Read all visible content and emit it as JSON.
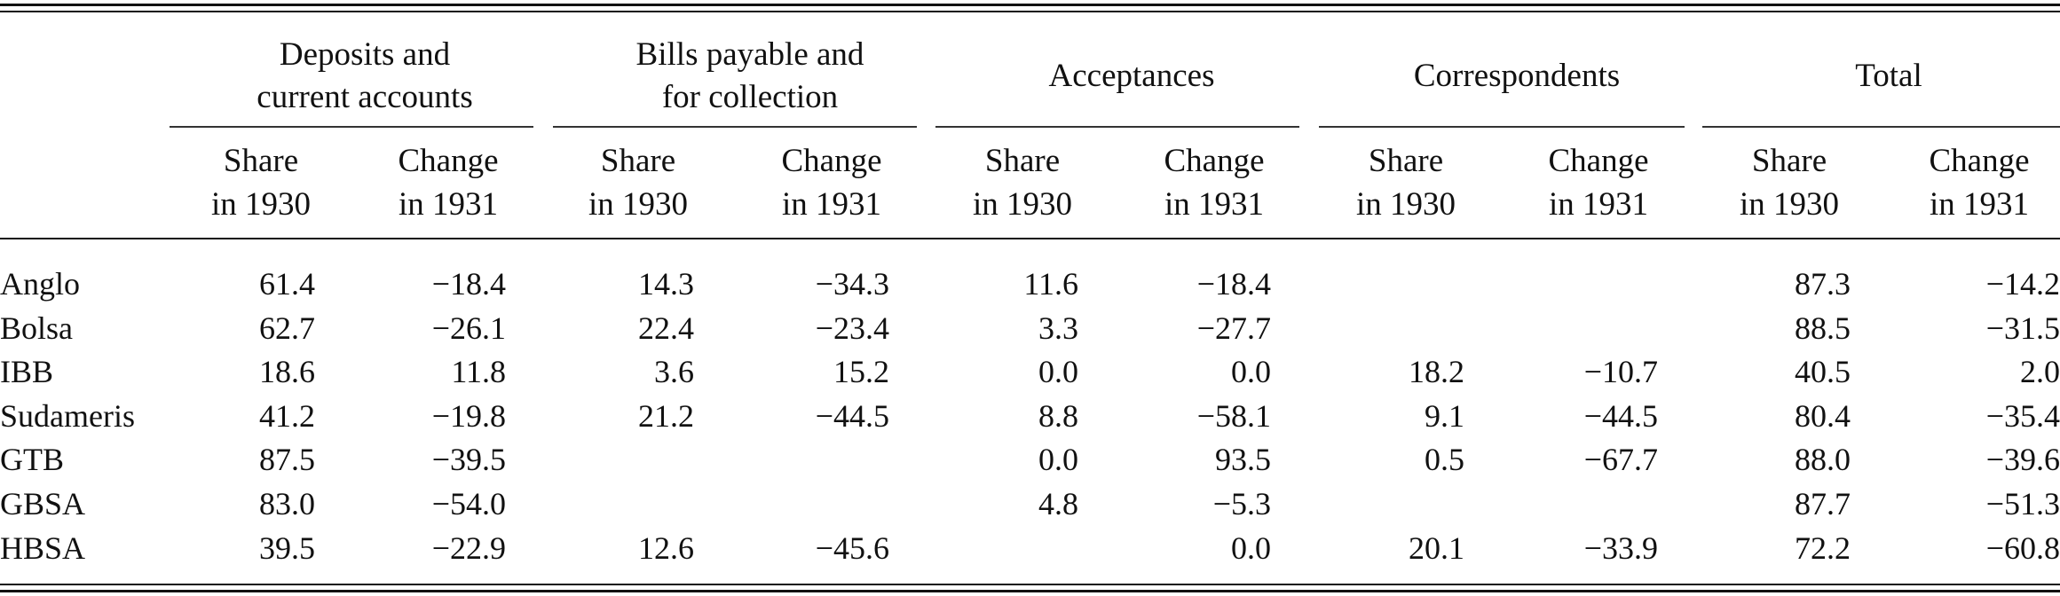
{
  "groups": [
    {
      "line1": "Deposits and",
      "line2": "current accounts"
    },
    {
      "line1": "Bills payable and",
      "line2": "for collection"
    },
    {
      "line1": "Acceptances",
      "line2": ""
    },
    {
      "line1": "Correspondents",
      "line2": ""
    },
    {
      "line1": "Total",
      "line2": ""
    }
  ],
  "subheaders": {
    "share": {
      "line1": "Share",
      "line2": "in 1930"
    },
    "change": {
      "line1": "Change",
      "line2": "in 1931"
    }
  },
  "rows": [
    {
      "label": "Anglo",
      "values": [
        "61.4",
        "−18.4",
        "14.3",
        "−34.3",
        "11.6",
        "−18.4",
        "",
        "",
        "87.3",
        "−14.2"
      ]
    },
    {
      "label": "Bolsa",
      "values": [
        "62.7",
        "−26.1",
        "22.4",
        "−23.4",
        "3.3",
        "−27.7",
        "",
        "",
        "88.5",
        "−31.5"
      ]
    },
    {
      "label": "IBB",
      "values": [
        "18.6",
        "11.8",
        "3.6",
        "15.2",
        "0.0",
        "0.0",
        "18.2",
        "−10.7",
        "40.5",
        "2.0"
      ]
    },
    {
      "label": "Sudameris",
      "values": [
        "41.2",
        "−19.8",
        "21.2",
        "−44.5",
        "8.8",
        "−58.1",
        "9.1",
        "−44.5",
        "80.4",
        "−35.4"
      ]
    },
    {
      "label": "GTB",
      "values": [
        "87.5",
        "−39.5",
        "",
        "",
        "0.0",
        "93.5",
        "0.5",
        "−67.7",
        "88.0",
        "−39.6"
      ]
    },
    {
      "label": "GBSA",
      "values": [
        "83.0",
        "−54.0",
        "",
        "",
        "4.8",
        "−5.3",
        "",
        "",
        "87.7",
        "−51.3"
      ]
    },
    {
      "label": "HBSA",
      "values": [
        "39.5",
        "−22.9",
        "12.6",
        "−45.6",
        "",
        "0.0",
        "20.1",
        "−33.9",
        "72.2",
        "−60.8"
      ]
    }
  ]
}
